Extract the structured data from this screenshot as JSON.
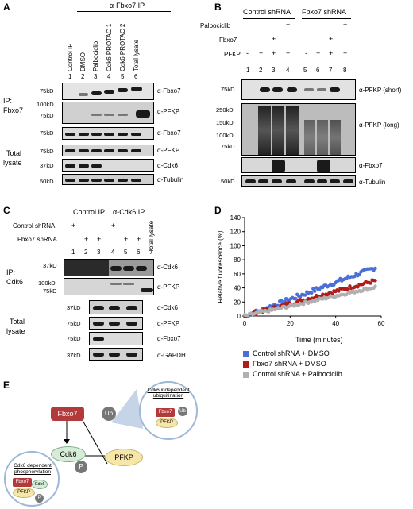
{
  "panelA": {
    "label": "A",
    "ip_header": "α-Fbxo7 IP",
    "lanes": [
      "Control IP",
      "DMSO",
      "Palbociclib",
      "Cdk6 PROTAC 1",
      "Cdk6 PROTAC 2",
      "Total lysate"
    ],
    "numbers": [
      "1",
      "2",
      "3",
      "4",
      "5",
      "6"
    ],
    "ip_label": "IP:",
    "ip_target": "Fbxo7",
    "total_label_1": "Total",
    "total_label_2": "lysate",
    "markers": [
      "75kD",
      "100kD",
      "75kD",
      "75kD",
      "75kD",
      "37kD",
      "50kD"
    ],
    "antibodies": [
      "α-Fbxo7",
      "α-PFKP",
      "α-Fbxo7",
      "α-PFKP",
      "α-Cdk6",
      "α-Tubulin"
    ]
  },
  "panelB": {
    "label": "B",
    "group1": "Control shRNA",
    "group2": "Fbxo7 shRNA",
    "rows": [
      "Palbociclib",
      "Fbxo7",
      "PFKP"
    ],
    "pfkp_signs": [
      "-",
      "+",
      "+",
      "+",
      "-",
      "+",
      "+",
      "+"
    ],
    "fbxo7_signs": [
      "+",
      "+"
    ],
    "palbo_signs": [
      "+",
      "+"
    ],
    "numbers": [
      "1",
      "2",
      "3",
      "4",
      "5",
      "6",
      "7",
      "8"
    ],
    "markers": [
      "75kD",
      "250kD",
      "150kD",
      "100kD",
      "75kD",
      "50kD"
    ],
    "antibodies": [
      "α-PFKP (short)",
      "α-PFKP (long)",
      "α-Fbxo7",
      "α-Tubulin"
    ]
  },
  "panelC": {
    "label": "C",
    "control_ip": "Control IP",
    "cdk6_ip": "α-Cdk6 IP",
    "total_lysate": "Total lysate",
    "rows": [
      "Control shRNA",
      "Fbxo7 shRNA"
    ],
    "plus": "+",
    "numbers": [
      "1",
      "2",
      "3",
      "4",
      "5",
      "6",
      "7"
    ],
    "ip_label": "IP:",
    "ip_target": "Cdk6",
    "total_label_1": "Total",
    "total_label_2": "lysate",
    "markers": [
      "37kD",
      "100kD",
      "75kD",
      "37kD",
      "75kD",
      "75kD",
      "37kD"
    ],
    "antibodies": [
      "α-Cdk6",
      "α-PFKP",
      "α-Cdk6",
      "α-PFKP",
      "α-Fbxo7",
      "α-GAPDH"
    ]
  },
  "panelD": {
    "label": "D",
    "chart_data": {
      "type": "scatter",
      "xlabel": "Time (minutes)",
      "ylabel": "Relative fluorescence (%)",
      "xlim": [
        0,
        60
      ],
      "ylim": [
        0,
        140
      ],
      "xticks": [
        0,
        20,
        40,
        60
      ],
      "yticks": [
        0,
        20,
        40,
        60,
        80,
        100,
        120,
        140
      ],
      "series": [
        {
          "name": "Control shRNA + DMSO",
          "color": "#4a6fd6",
          "slope": 1.2,
          "noise": 3
        },
        {
          "name": "Fbxo7 shRNA + DMSO",
          "color": "#b01c1c",
          "slope": 0.88,
          "noise": 2.5
        },
        {
          "name": "Control shRNA + Palbociclib",
          "color": "#b0b0b0",
          "slope": 0.72,
          "noise": 2
        }
      ]
    }
  },
  "panelE": {
    "label": "E",
    "fbxo7": "Fbxo7",
    "ub": "Ub",
    "cdk6": "Cdk6",
    "pfkp": "PFKP",
    "p": "P",
    "bubble1_title": "Cdk6 independent ubiquitination",
    "bubble2_title_1": "Cdk6 dependent",
    "bubble2_title_2": "phosphorylation",
    "mini_fbxo7": "Fbxo7",
    "mini_pfkp": "PFKP",
    "mini_cdk6": "Cdk6",
    "mini_ub": "Ub",
    "mini_p": "P"
  }
}
